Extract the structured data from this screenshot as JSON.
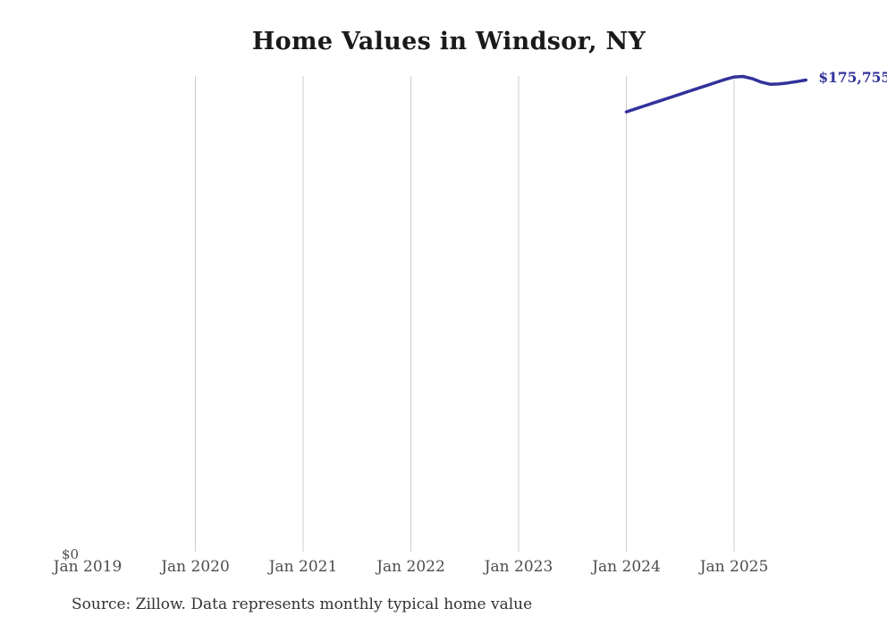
{
  "page": {
    "background": "#ffffff"
  },
  "chart": {
    "title": "Home Values in Windsor, NY",
    "source_note": "Source: Zillow. Data represents monthly typical home value",
    "y_zero_label": "$0",
    "end_value_label": "$175,755",
    "colors": {
      "line": "#32329B",
      "end_label": "#32329B",
      "grid": "#cccccc",
      "title": "#1a1a1a",
      "axis_text": "#4d4d4d",
      "source_text": "#333333",
      "background": "#ffffff"
    }
  },
  "chart_data": {
    "type": "line",
    "title": "Home Values in Windsor, NY",
    "xlabel": "",
    "ylabel": "",
    "ylim": [
      0,
      180000
    ],
    "grid": "vertical-only",
    "legend": "none",
    "x_tick_labels": [
      "Jan 2019",
      "Jan 2020",
      "Jan 2021",
      "Jan 2022",
      "Jan 2023",
      "Jan 2024",
      "Jan 2025"
    ],
    "gridline_ticks": [
      "Jan 2020",
      "Jan 2021",
      "Jan 2022",
      "Jan 2023",
      "Jan 2024",
      "Jan 2025"
    ],
    "y_axis_visible_labels": [
      "$0"
    ],
    "series": [
      {
        "name": "home_value",
        "x": [
          "Jan 2024",
          "Feb 2024",
          "Mar 2024",
          "Apr 2024",
          "May 2024",
          "Jun 2024",
          "Jul 2024",
          "Aug 2024",
          "Sep 2024",
          "Oct 2024",
          "Nov 2024",
          "Dec 2024",
          "Jan 2025",
          "Feb 2025",
          "Mar 2025",
          "Apr 2025",
          "May 2025",
          "Jun 2025",
          "Jul 2025",
          "Aug 2025",
          "Sep 2025"
        ],
        "values": [
          163900,
          165000,
          166100,
          167200,
          168300,
          169400,
          170500,
          171600,
          172700,
          173800,
          174900,
          176000,
          176900,
          177100,
          176300,
          175000,
          174200,
          174300,
          174700,
          175200,
          175755
        ]
      }
    ],
    "end_label": "$175,755"
  }
}
